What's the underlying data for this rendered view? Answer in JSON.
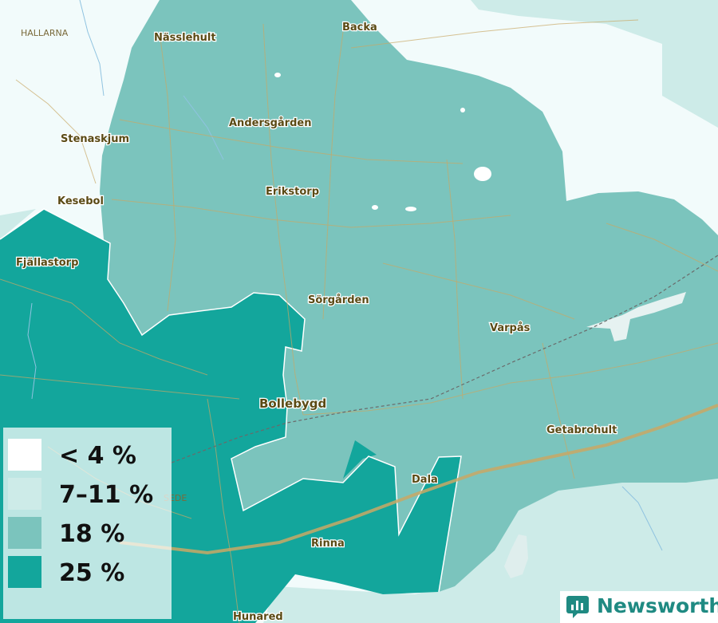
{
  "map": {
    "colors": {
      "background": "#f2fbfb",
      "low": "#ffffff",
      "mid": "#cdebe8",
      "high": "#7bc4bd",
      "highest": "#13a69c",
      "road": "#c9a865",
      "water": "#8fc3e0"
    },
    "places": [
      {
        "name": "HALLARNA",
        "kind": "small"
      },
      {
        "name": "Nässlehult",
        "kind": "normal"
      },
      {
        "name": "Backa",
        "kind": "normal"
      },
      {
        "name": "Andersgården",
        "kind": "normal"
      },
      {
        "name": "Stenaskjum",
        "kind": "normal"
      },
      {
        "name": "Erikstorp",
        "kind": "normal"
      },
      {
        "name": "Kesebol",
        "kind": "normal"
      },
      {
        "name": "Fjällastorp",
        "kind": "normal"
      },
      {
        "name": "Sörgården",
        "kind": "normal"
      },
      {
        "name": "Varpås",
        "kind": "normal"
      },
      {
        "name": "Bollebygd",
        "kind": "large"
      },
      {
        "name": "Getabrohult",
        "kind": "normal"
      },
      {
        "name": "Dala",
        "kind": "normal"
      },
      {
        "name": "SEDE",
        "kind": "small"
      },
      {
        "name": "Rinna",
        "kind": "normal"
      },
      {
        "name": "Hunared",
        "kind": "normal"
      }
    ]
  },
  "legend": {
    "items": [
      {
        "label": "< 4 %",
        "color": "#ffffff"
      },
      {
        "label": "7–11 %",
        "color": "#cdebe8"
      },
      {
        "label": "18 %",
        "color": "#7bc4bd"
      },
      {
        "label": "25 %",
        "color": "#13a69c"
      }
    ]
  },
  "branding": {
    "logo_text": "Newsworthy",
    "logo_icon": "newsworthy-chart-icon"
  }
}
